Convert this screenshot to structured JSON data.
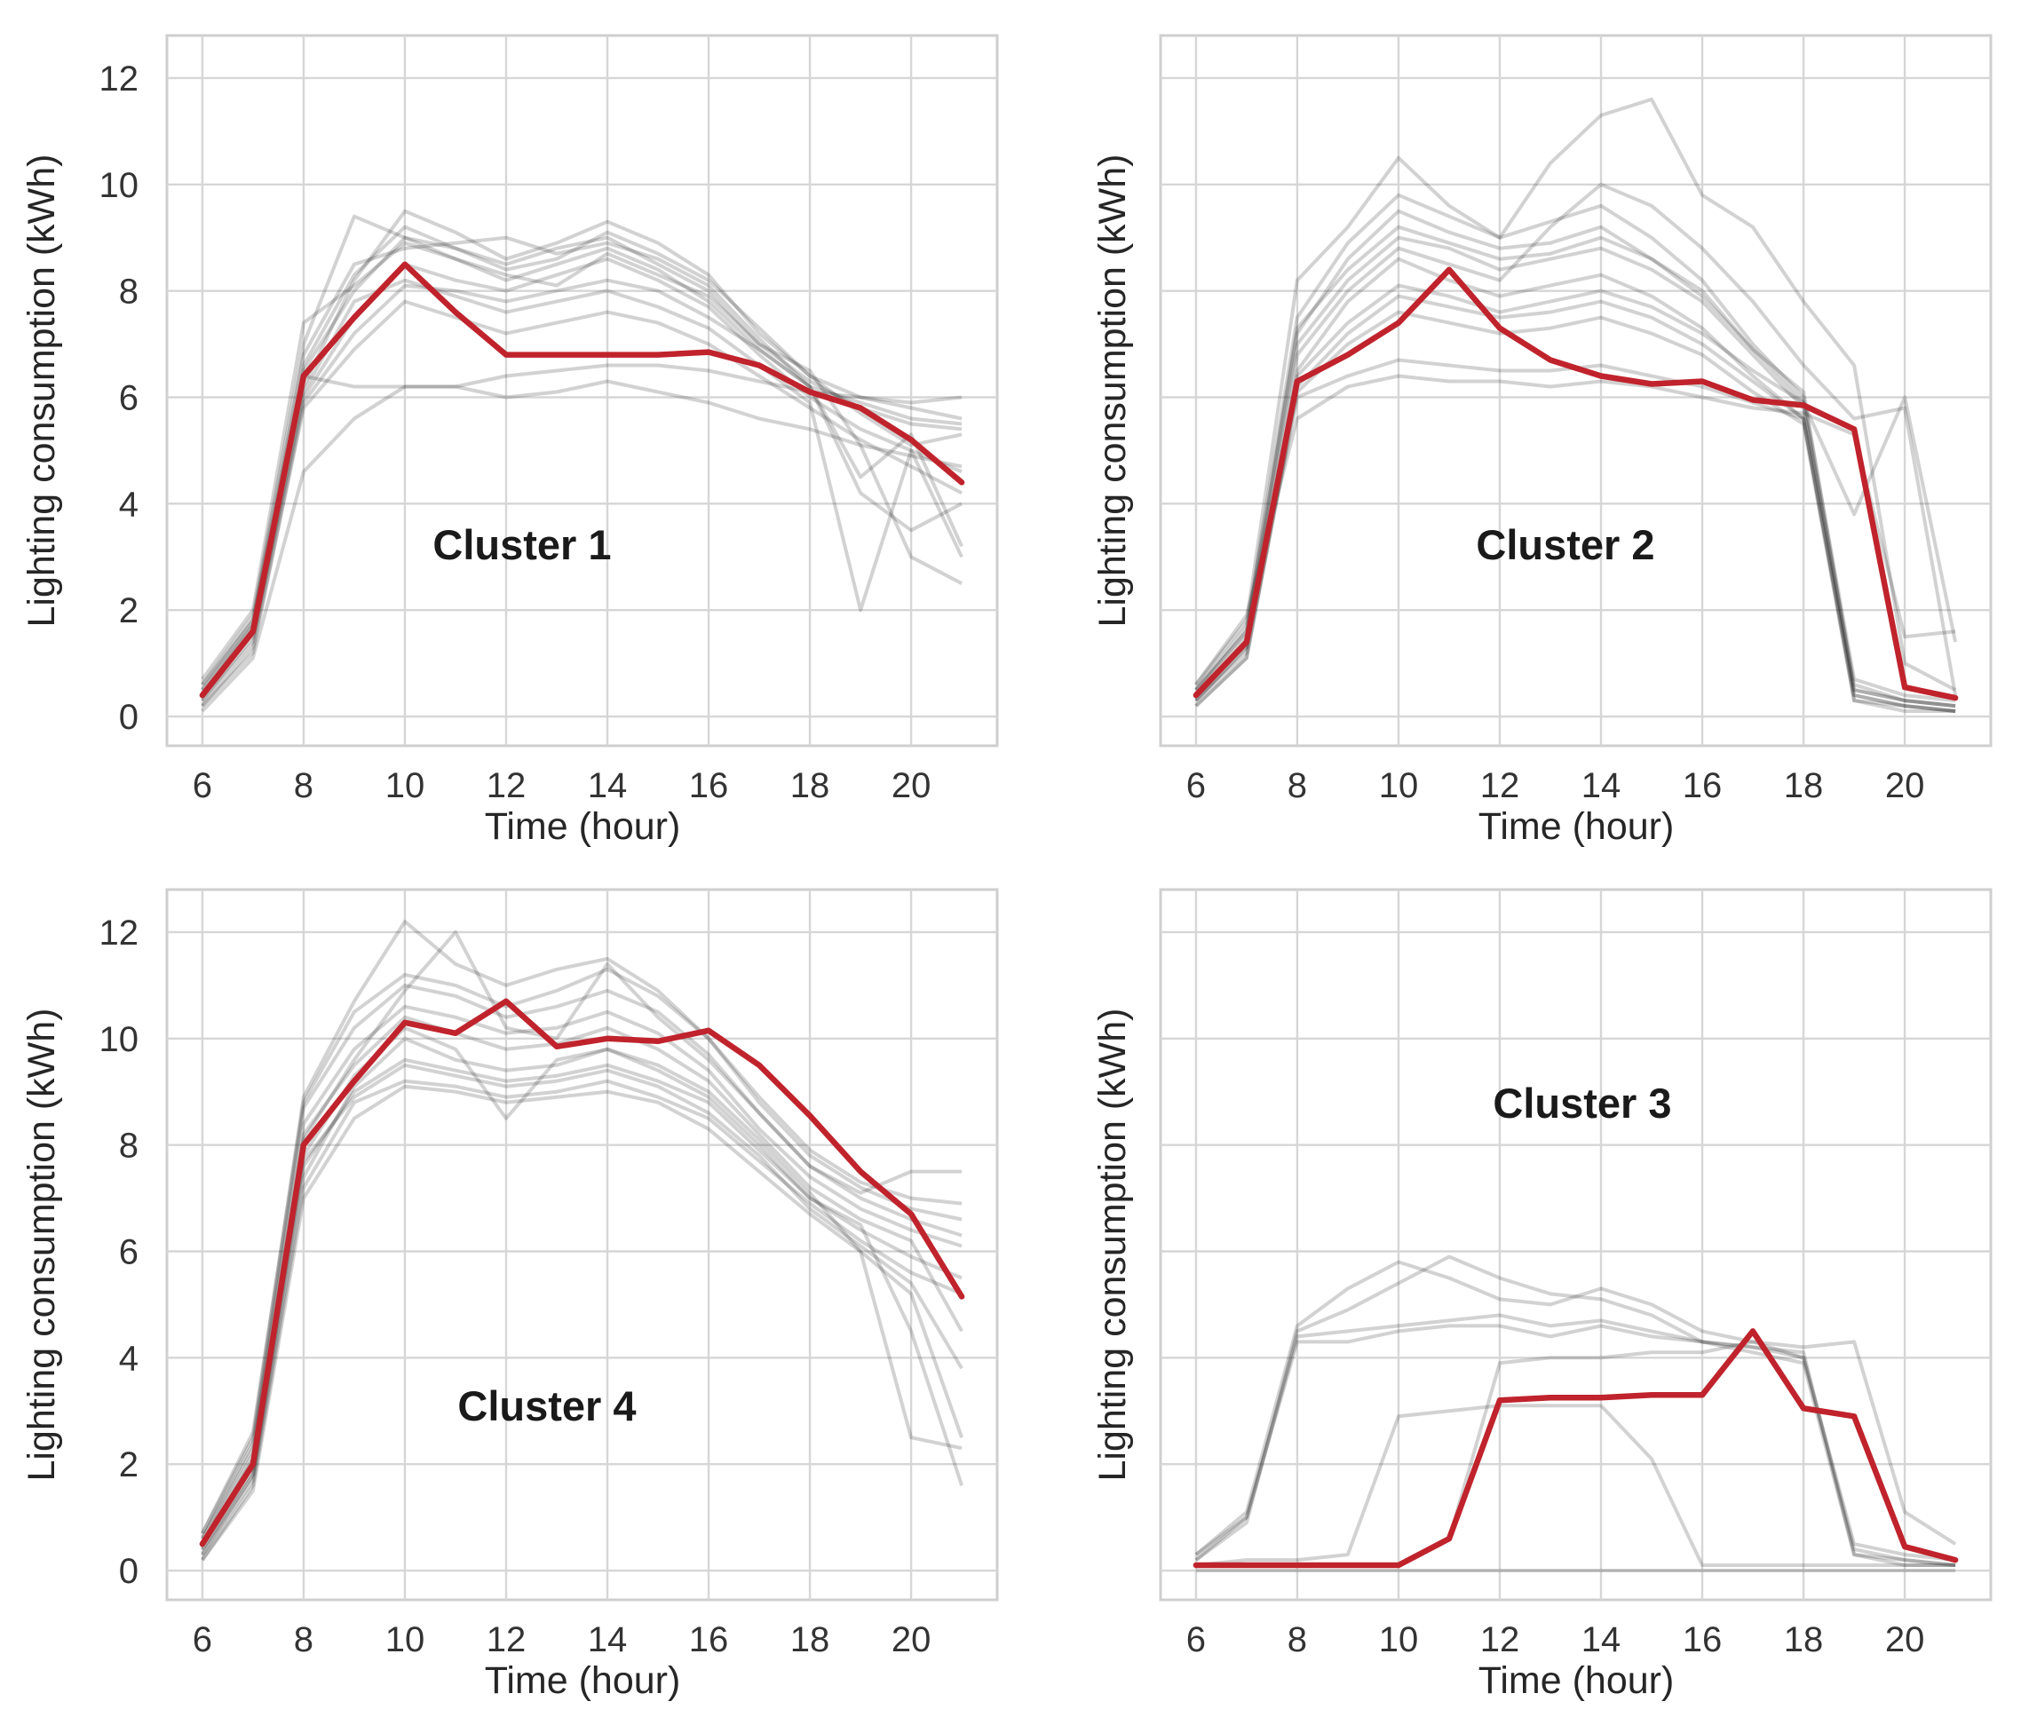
{
  "figure": {
    "x_axis_label": "Time (hour)",
    "y_axis_label": "Lighting consumption (kWh)"
  },
  "colors": {
    "centroid": "#c0232c",
    "samples": "#1c1c1c",
    "grid": "#d6d6d6",
    "frame": "#cfcfcf"
  },
  "chart_data": [
    {
      "type": "line",
      "title": "Cluster 1",
      "xlabel": "Time (hour)",
      "ylabel": "Lighting consumption (kWh)",
      "xlim": [
        5.3,
        21.7
      ],
      "ylim": [
        -0.55,
        12.8
      ],
      "xticks": [
        6,
        8,
        10,
        12,
        14,
        16,
        18,
        20
      ],
      "yticks": [
        0,
        2,
        4,
        6,
        8,
        10,
        12
      ],
      "show_ytick_labels": true,
      "x": [
        6,
        7,
        8,
        9,
        10,
        11,
        12,
        13,
        14,
        15,
        16,
        17,
        18,
        19,
        20,
        21
      ],
      "centroid": [
        0.4,
        1.6,
        6.4,
        7.5,
        8.5,
        7.6,
        6.8,
        6.8,
        6.8,
        6.8,
        6.85,
        6.6,
        6.1,
        5.8,
        5.2,
        4.4
      ],
      "samples": [
        [
          0.5,
          1.7,
          6.5,
          8.0,
          9.0,
          8.8,
          8.5,
          8.8,
          9.0,
          8.5,
          8.0,
          7.0,
          6.3,
          5.8,
          5.5,
          5.4
        ],
        [
          0.3,
          1.4,
          6.0,
          7.5,
          8.5,
          8.2,
          8.0,
          8.3,
          8.6,
          8.2,
          7.7,
          6.8,
          6.0,
          5.4,
          5.0,
          4.6
        ],
        [
          0.6,
          1.9,
          7.0,
          9.4,
          9.0,
          8.6,
          8.2,
          8.5,
          8.8,
          8.4,
          7.8,
          6.9,
          6.2,
          5.9,
          5.6,
          5.5
        ],
        [
          0.2,
          1.3,
          5.8,
          6.9,
          7.8,
          7.5,
          7.2,
          7.4,
          7.6,
          7.4,
          7.0,
          6.4,
          5.8,
          5.2,
          4.7,
          4.2
        ],
        [
          0.4,
          1.6,
          6.2,
          8.2,
          9.5,
          9.1,
          8.6,
          8.9,
          9.3,
          8.9,
          8.3,
          7.2,
          6.4,
          6.0,
          5.8,
          5.6
        ],
        [
          0.1,
          1.1,
          4.6,
          5.6,
          6.2,
          6.2,
          6.0,
          6.1,
          6.3,
          6.1,
          5.9,
          5.6,
          5.4,
          5.1,
          4.9,
          4.7
        ],
        [
          0.5,
          1.8,
          6.8,
          8.5,
          8.8,
          8.9,
          9.0,
          8.7,
          8.9,
          8.6,
          8.1,
          7.1,
          6.2,
          4.5,
          5.3,
          3.2
        ],
        [
          0.3,
          1.5,
          6.1,
          7.8,
          8.2,
          7.9,
          7.6,
          7.8,
          8.0,
          7.7,
          7.3,
          6.6,
          5.9,
          2.0,
          5.0,
          3.0
        ],
        [
          0.4,
          1.7,
          6.4,
          6.2,
          6.2,
          6.2,
          6.4,
          6.5,
          6.6,
          6.6,
          6.5,
          6.3,
          6.1,
          6.0,
          5.9,
          6.0
        ],
        [
          0.7,
          2.0,
          7.4,
          8.1,
          8.9,
          8.6,
          8.3,
          8.1,
          8.7,
          8.3,
          7.9,
          7.0,
          6.5,
          5.1,
          3.0,
          2.5
        ],
        [
          0.2,
          1.2,
          5.9,
          7.2,
          8.1,
          8.0,
          7.8,
          8.0,
          8.2,
          8.0,
          7.5,
          6.9,
          6.2,
          4.2,
          3.5,
          4.0
        ],
        [
          0.6,
          1.8,
          6.6,
          8.3,
          9.2,
          8.8,
          8.4,
          8.6,
          9.1,
          8.7,
          8.2,
          7.3,
          6.4,
          5.7,
          5.1,
          5.3
        ]
      ]
    },
    {
      "type": "line",
      "title": "Cluster 2",
      "xlabel": "Time (hour)",
      "ylabel": "Lighting consumption (kWh)",
      "xlim": [
        5.3,
        21.7
      ],
      "ylim": [
        -0.55,
        12.8
      ],
      "xticks": [
        6,
        8,
        10,
        12,
        14,
        16,
        18,
        20
      ],
      "yticks": [
        0,
        2,
        4,
        6,
        8,
        10,
        12
      ],
      "show_ytick_labels": false,
      "x": [
        6,
        7,
        8,
        9,
        10,
        11,
        12,
        13,
        14,
        15,
        16,
        17,
        18,
        19,
        20,
        21
      ],
      "centroid": [
        0.4,
        1.4,
        6.3,
        6.8,
        7.4,
        8.4,
        7.3,
        6.7,
        6.4,
        6.25,
        6.3,
        5.95,
        5.85,
        5.4,
        0.55,
        0.35
      ],
      "samples": [
        [
          0.4,
          1.5,
          7.0,
          8.2,
          9.0,
          8.8,
          8.4,
          8.6,
          8.8,
          8.4,
          7.8,
          6.8,
          5.8,
          0.6,
          0.3,
          0.2
        ],
        [
          0.3,
          1.3,
          6.5,
          7.8,
          8.6,
          8.2,
          7.9,
          8.1,
          8.3,
          7.9,
          7.3,
          6.4,
          5.6,
          0.4,
          0.2,
          0.1
        ],
        [
          0.5,
          1.6,
          7.2,
          8.6,
          9.5,
          9.1,
          8.8,
          8.9,
          9.2,
          8.6,
          8.0,
          6.9,
          5.9,
          0.5,
          0.3,
          0.2
        ],
        [
          0.2,
          1.1,
          6.1,
          7.0,
          7.6,
          7.4,
          7.2,
          7.3,
          7.5,
          7.2,
          6.8,
          6.1,
          5.5,
          0.3,
          0.2,
          0.1
        ],
        [
          0.6,
          1.8,
          8.2,
          9.2,
          10.5,
          9.6,
          9.0,
          9.3,
          9.6,
          9.0,
          8.2,
          7.0,
          6.0,
          0.7,
          0.4,
          0.3
        ],
        [
          0.3,
          1.2,
          6.0,
          6.4,
          6.7,
          6.6,
          6.5,
          6.5,
          6.6,
          6.4,
          6.2,
          5.9,
          5.6,
          0.4,
          0.2,
          0.1
        ],
        [
          0.5,
          1.7,
          7.5,
          8.9,
          9.8,
          9.4,
          9.0,
          10.4,
          11.3,
          11.6,
          9.8,
          9.2,
          7.8,
          6.6,
          1.0,
          0.5
        ],
        [
          0.4,
          1.4,
          6.8,
          8.0,
          8.8,
          8.5,
          8.2,
          9.2,
          10.0,
          9.6,
          8.8,
          7.8,
          6.6,
          5.6,
          5.8,
          0.4
        ],
        [
          0.3,
          1.3,
          6.4,
          7.4,
          8.1,
          7.9,
          7.6,
          7.8,
          8.0,
          7.7,
          7.2,
          6.5,
          5.9,
          3.8,
          6.0,
          1.4
        ],
        [
          0.5,
          1.6,
          7.3,
          8.4,
          9.2,
          8.9,
          8.6,
          8.7,
          9.0,
          8.6,
          7.9,
          6.9,
          6.1,
          0.5,
          0.3,
          0.2
        ],
        [
          0.6,
          1.9,
          5.6,
          6.2,
          6.4,
          6.3,
          6.3,
          6.2,
          6.3,
          6.2,
          6.0,
          5.8,
          5.7,
          5.3,
          1.5,
          1.6
        ],
        [
          0.2,
          1.1,
          6.2,
          7.2,
          7.9,
          7.7,
          7.5,
          7.6,
          7.8,
          7.5,
          7.0,
          6.3,
          5.6,
          0.3,
          0.1,
          0.1
        ]
      ]
    },
    {
      "type": "line",
      "title": "Cluster 4",
      "xlabel": "Time (hour)",
      "ylabel": "Lighting consumption (kWh)",
      "xlim": [
        5.3,
        21.7
      ],
      "ylim": [
        -0.55,
        12.8
      ],
      "xticks": [
        6,
        8,
        10,
        12,
        14,
        16,
        18,
        20
      ],
      "yticks": [
        0,
        2,
        4,
        6,
        8,
        10,
        12
      ],
      "show_ytick_labels": true,
      "x": [
        6,
        7,
        8,
        9,
        10,
        11,
        12,
        13,
        14,
        15,
        16,
        17,
        18,
        19,
        20,
        21
      ],
      "centroid": [
        0.5,
        2.0,
        8.0,
        9.2,
        10.3,
        10.1,
        10.7,
        9.85,
        10.0,
        9.95,
        10.15,
        9.5,
        8.55,
        7.5,
        6.7,
        5.15
      ],
      "samples": [
        [
          0.6,
          2.3,
          8.4,
          9.8,
          10.6,
          10.4,
          10.1,
          10.2,
          10.5,
          10.1,
          9.4,
          8.3,
          7.4,
          6.8,
          6.4,
          6.1
        ],
        [
          0.3,
          1.8,
          7.6,
          9.0,
          9.6,
          9.4,
          9.2,
          9.3,
          9.5,
          9.2,
          8.8,
          7.9,
          7.0,
          6.4,
          5.9,
          5.5
        ],
        [
          0.7,
          2.5,
          8.9,
          10.7,
          12.2,
          11.4,
          11.0,
          11.3,
          11.5,
          10.9,
          10.0,
          8.8,
          7.8,
          7.2,
          6.8,
          6.6
        ],
        [
          0.2,
          1.6,
          7.2,
          8.8,
          9.2,
          9.1,
          8.9,
          9.0,
          9.2,
          8.9,
          8.5,
          7.7,
          6.9,
          6.2,
          5.6,
          5.2
        ],
        [
          0.5,
          2.1,
          8.1,
          9.6,
          10.9,
          12.0,
          10.2,
          10.0,
          11.4,
          10.4,
          9.6,
          8.6,
          7.6,
          7.1,
          7.5,
          7.5
        ],
        [
          0.4,
          1.9,
          7.8,
          9.3,
          10.2,
          9.8,
          8.5,
          9.6,
          9.8,
          9.5,
          9.0,
          8.1,
          7.1,
          6.0,
          2.5,
          2.3
        ],
        [
          0.6,
          2.4,
          8.7,
          10.2,
          11.0,
          10.8,
          10.4,
          10.6,
          10.9,
          10.5,
          9.7,
          8.6,
          7.6,
          7.0,
          6.6,
          6.3
        ],
        [
          0.3,
          1.7,
          7.4,
          9.1,
          10.0,
          9.6,
          9.4,
          9.5,
          9.8,
          9.4,
          8.9,
          8.0,
          7.0,
          6.5,
          4.5,
          1.6
        ],
        [
          0.5,
          2.2,
          8.2,
          9.5,
          10.4,
          10.1,
          9.8,
          9.9,
          10.2,
          9.8,
          9.2,
          8.2,
          7.2,
          6.6,
          6.2,
          4.5
        ],
        [
          0.4,
          1.8,
          7.7,
          8.9,
          9.5,
          9.3,
          9.1,
          9.2,
          9.4,
          9.1,
          8.6,
          7.8,
          6.8,
          6.1,
          5.4,
          3.8
        ],
        [
          0.7,
          2.6,
          8.8,
          10.5,
          11.2,
          11.0,
          10.6,
          10.9,
          11.3,
          10.8,
          10.0,
          8.9,
          7.9,
          7.3,
          7.0,
          6.9
        ],
        [
          0.2,
          1.5,
          7.0,
          8.5,
          9.1,
          9.0,
          8.8,
          8.9,
          9.0,
          8.8,
          8.3,
          7.5,
          6.7,
          6.0,
          5.2,
          2.5
        ]
      ]
    },
    {
      "type": "line",
      "title": "Cluster 3",
      "xlabel": "Time (hour)",
      "ylabel": "Lighting consumption (kWh)",
      "xlim": [
        5.3,
        21.7
      ],
      "ylim": [
        -0.55,
        12.8
      ],
      "xticks": [
        6,
        8,
        10,
        12,
        14,
        16,
        18,
        20
      ],
      "yticks": [
        0,
        2,
        4,
        6,
        8,
        10,
        12
      ],
      "show_ytick_labels": false,
      "x": [
        6,
        7,
        8,
        9,
        10,
        11,
        12,
        13,
        14,
        15,
        16,
        17,
        18,
        19,
        20,
        21
      ],
      "centroid": [
        0.1,
        0.1,
        0.1,
        0.1,
        0.1,
        0.6,
        3.2,
        3.25,
        3.25,
        3.3,
        3.3,
        4.5,
        3.05,
        2.9,
        0.45,
        0.2
      ],
      "samples": [
        [
          0.2,
          1.0,
          4.3,
          4.3,
          4.5,
          4.6,
          4.6,
          4.4,
          4.6,
          4.4,
          4.3,
          4.2,
          4.0,
          0.4,
          0.2,
          0.1
        ],
        [
          0.3,
          1.1,
          4.6,
          5.3,
          5.8,
          5.5,
          5.1,
          5.0,
          5.3,
          5.0,
          4.5,
          4.3,
          4.0,
          0.5,
          0.3,
          0.2
        ],
        [
          0.2,
          0.9,
          4.5,
          4.9,
          5.4,
          5.9,
          5.5,
          5.2,
          5.1,
          4.8,
          4.3,
          4.2,
          4.1,
          0.3,
          0.2,
          0.1
        ],
        [
          0.1,
          0.2,
          0.2,
          0.3,
          2.9,
          3.0,
          3.1,
          3.1,
          3.1,
          2.1,
          0.1,
          0.1,
          0.1,
          0.1,
          0.1,
          0.1
        ],
        [
          0.1,
          0.1,
          0.1,
          0.1,
          0.1,
          0.6,
          3.9,
          4.0,
          4.0,
          4.1,
          4.1,
          4.3,
          4.2,
          4.3,
          1.1,
          0.5
        ],
        [
          0.3,
          1.0,
          4.4,
          4.5,
          4.6,
          4.7,
          4.8,
          4.6,
          4.7,
          4.5,
          4.3,
          4.1,
          3.9,
          0.3,
          0.1,
          0.1
        ],
        [
          0.0,
          0.0,
          0.0,
          0.0,
          0.0,
          0.0,
          0.0,
          0.0,
          0.0,
          0.0,
          0.0,
          0.0,
          0.0,
          0.0,
          0.0,
          0.0
        ]
      ]
    }
  ]
}
